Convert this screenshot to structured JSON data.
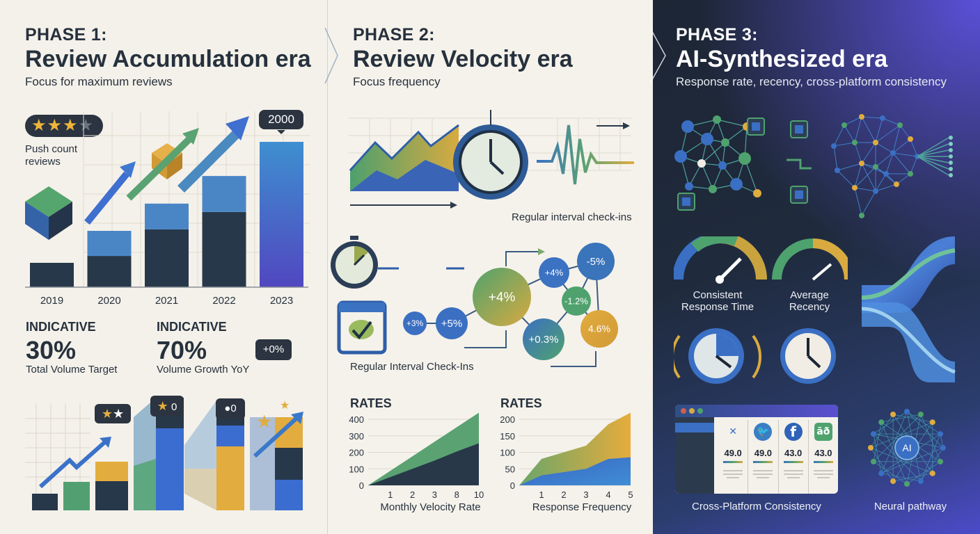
{
  "phase1": {
    "phase": "PHASE 1:",
    "title": "Review Accumulation era",
    "subtitle": "Focus for maximum reviews",
    "stars": {
      "filled": 3,
      "total": 4
    },
    "push_label": "Push count reviews",
    "bar_callout": "2000",
    "stat1": {
      "kicker": "INDICATIVE",
      "value": "30%",
      "label": "Total Volume Target"
    },
    "stat2": {
      "kicker": "INDICATIVE",
      "value": "70%",
      "label": "Volume Growth YoY"
    },
    "bottom_callouts": [
      "0",
      "0",
      "+0%"
    ]
  },
  "phase2": {
    "phase": "PHASE 2:",
    "title": "Review Velocity era",
    "subtitle": "Focus frequency",
    "checkins_caption": "Regular interval check-ins",
    "checkins_caption2": "Regular Interval Check-Ins",
    "nodes": [
      "+3%",
      "+5%",
      "+4%",
      "+4%",
      "-5%",
      "-1.2%",
      "+0.3%",
      "4.6%"
    ]
  },
  "phase3": {
    "phase": "PHASE 3:",
    "title": "AI-Synthesized era",
    "subtitle": "Response rate, recency, cross-platform consistency",
    "gauge1_label": "Consistent Response Time",
    "gauge2_label": "Average Recency",
    "platform_scores": [
      "49.0",
      "49.0",
      "43.0",
      "43.0"
    ],
    "platform_icons": [
      "app-icon",
      "twitter-icon",
      "facebook-icon",
      "app-store-icon"
    ],
    "platform_caption": "Cross-Platform Consistency",
    "ai_label": "AI",
    "neural_caption": "Neural pathway"
  },
  "chart_data": [
    {
      "type": "bar",
      "categories": [
        "2019",
        "2020",
        "2021",
        "2022",
        "2023"
      ],
      "series": [
        {
          "values": [
            335,
            430,
            795,
            1035,
            0
          ]
        },
        {
          "values": [
            0,
            345,
            355,
            495,
            2000
          ]
        }
      ],
      "colors": [
        "#27384a",
        "#4a86c6",
        "#4a6fd6"
      ],
      "data_labels": {
        "2023": "2000"
      },
      "stacked": true,
      "grid": true
    },
    {
      "type": "area",
      "title": "RATES",
      "categories": [
        "",
        "1",
        "2",
        "3",
        "8",
        "10"
      ],
      "xlabel": "Monthly Velocity Rate",
      "ylim": [
        0,
        400
      ],
      "yticks": [
        0,
        100,
        200,
        300,
        400
      ],
      "series": [
        {
          "values": [
            0,
            88,
            176,
            264,
            352,
            440
          ],
          "color": "#5aa272"
        },
        {
          "values": [
            0,
            50,
            100,
            150,
            205,
            255
          ],
          "color": "#283848"
        }
      ],
      "grid": true
    },
    {
      "type": "area",
      "title": "RATES",
      "categories": [
        "",
        "1",
        "2",
        "3",
        "4",
        "5"
      ],
      "xlabel": "Response Frequency",
      "ylim": [
        0,
        200
      ],
      "yticks": [
        0,
        50,
        100,
        150,
        200
      ],
      "series": [
        {
          "values": [
            0,
            80,
            100,
            120,
            185,
            220
          ],
          "color": "#e0aa3e"
        },
        {
          "values": [
            0,
            30,
            40,
            50,
            80,
            85
          ],
          "color": "#3c6fc8"
        }
      ],
      "grid": true
    }
  ]
}
